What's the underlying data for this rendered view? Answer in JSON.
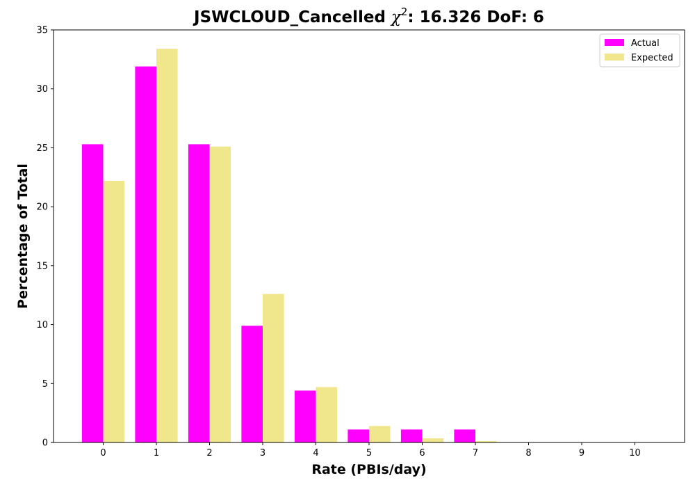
{
  "chart_data": {
    "type": "bar",
    "title_prefix": "JSWCLOUD_Cancelled ",
    "title_symbol": "χ",
    "title_superscript": "2",
    "title_suffix": ": 16.326 DoF: 6",
    "xlabel": "Rate (PBIs/day)",
    "ylabel": "Percentage of Total",
    "categories": [
      "0",
      "1",
      "2",
      "3",
      "4",
      "5",
      "6",
      "7",
      "8",
      "9",
      "10"
    ],
    "ylim": [
      0,
      35
    ],
    "yticks": [
      0,
      5,
      10,
      15,
      20,
      25,
      30,
      35
    ],
    "series": [
      {
        "name": "Actual",
        "color": "#ff00ff",
        "values": [
          25.3,
          31.9,
          25.3,
          9.9,
          4.4,
          1.1,
          1.1,
          1.1,
          0,
          0,
          0
        ]
      },
      {
        "name": "Expected",
        "color": "#f0e68c",
        "values": [
          22.2,
          33.4,
          25.1,
          12.6,
          4.7,
          1.4,
          0.35,
          0.12,
          0.03,
          0.01,
          0.002
        ]
      }
    ],
    "legend_position": "top-right",
    "grid": false
  }
}
